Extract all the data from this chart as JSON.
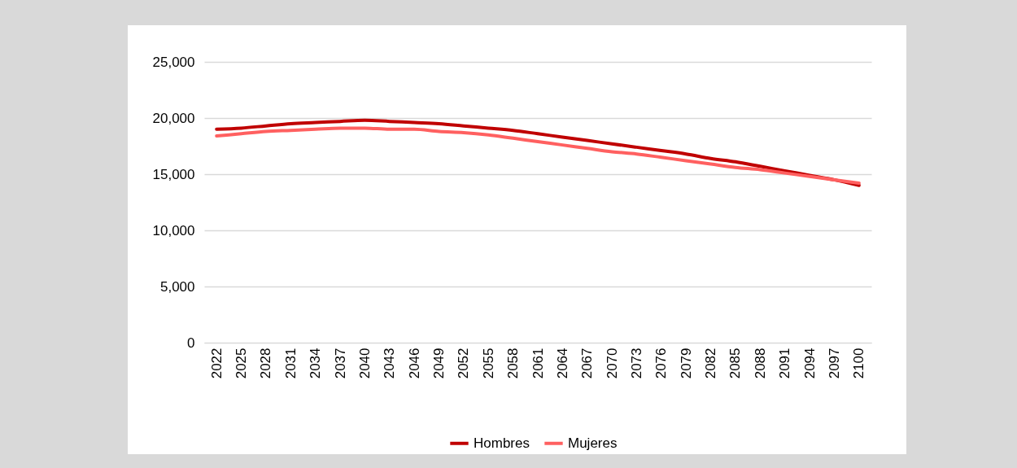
{
  "chart_data": {
    "type": "line",
    "categories": [
      "2022",
      "2025",
      "2028",
      "2031",
      "2034",
      "2037",
      "2040",
      "2043",
      "2046",
      "2049",
      "2052",
      "2055",
      "2058",
      "2061",
      "2064",
      "2067",
      "2070",
      "2073",
      "2076",
      "2079",
      "2082",
      "2085",
      "2088",
      "2091",
      "2094",
      "2097",
      "2100"
    ],
    "series": [
      {
        "name": "Hombres",
        "color": "#c00000",
        "values": [
          19000,
          19100,
          19300,
          19500,
          19600,
          19700,
          19800,
          19700,
          19600,
          19500,
          19300,
          19100,
          18900,
          18600,
          18300,
          18000,
          17700,
          17400,
          17100,
          16800,
          16400,
          16100,
          15700,
          15300,
          14900,
          14500,
          14000
        ]
      },
      {
        "name": "Mujeres",
        "color": "#ff6060",
        "values": [
          18400,
          18600,
          18800,
          18900,
          19000,
          19100,
          19100,
          19000,
          19000,
          18800,
          18700,
          18500,
          18200,
          17900,
          17600,
          17300,
          17000,
          16800,
          16500,
          16200,
          15900,
          15600,
          15400,
          15100,
          14800,
          14500,
          14200
        ]
      }
    ],
    "ylim": [
      0,
      25000
    ],
    "yticks": [
      0,
      {
        "value": 5000,
        "label": "5,000"
      },
      {
        "value": 10000,
        "label": "10,000"
      },
      {
        "value": 15000,
        "label": "15,000"
      },
      {
        "value": 20000,
        "label": "20,000"
      },
      {
        "value": 25000,
        "label": "25,000"
      }
    ],
    "grid": "y",
    "legend": "bottom",
    "line_style": "solid"
  }
}
